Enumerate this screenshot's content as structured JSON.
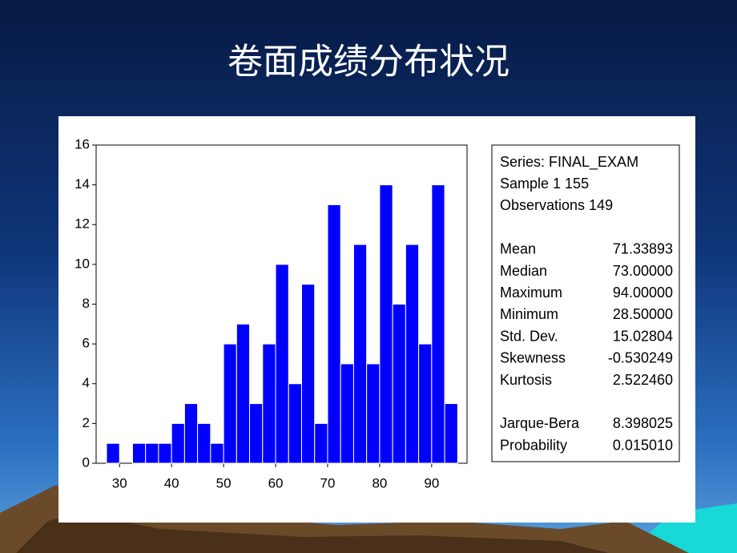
{
  "title": "卷面成绩分布状况",
  "chart_data": {
    "type": "histogram",
    "bins": [
      27.5,
      30,
      32.5,
      35,
      37.5,
      40,
      42.5,
      45,
      47.5,
      50,
      52.5,
      55,
      57.5,
      60,
      62.5,
      65,
      67.5,
      70,
      72.5,
      75,
      77.5,
      80,
      82.5,
      85,
      87.5,
      90,
      92.5,
      95
    ],
    "values": [
      1,
      0,
      1,
      1,
      1,
      2,
      3,
      2,
      1,
      6,
      7,
      3,
      6,
      10,
      4,
      9,
      2,
      13,
      5,
      11,
      5,
      14,
      8,
      11,
      6,
      14,
      3
    ],
    "color": "#0000ff",
    "xlim": [
      25.5,
      96.8
    ],
    "xticks": [
      30,
      40,
      50,
      60,
      70,
      80,
      90
    ],
    "ylim": [
      0,
      16
    ],
    "yticks": [
      0,
      2,
      4,
      6,
      8,
      10,
      12,
      14,
      16
    ]
  },
  "stats_box": {
    "lines": [
      "Series: FINAL_EXAM",
      "Sample 1 155",
      "Observations 149"
    ],
    "descriptive": [
      [
        "Mean",
        "71.33893"
      ],
      [
        "Median",
        "73.00000"
      ],
      [
        "Maximum",
        "94.00000"
      ],
      [
        "Minimum",
        "28.50000"
      ],
      [
        "Std. Dev.",
        "15.02804"
      ],
      [
        "Skewness",
        "-0.530249"
      ],
      [
        "Kurtosis",
        "2.522460"
      ]
    ],
    "tests": [
      [
        "Jarque-Bera",
        "8.398025"
      ],
      [
        "Probability",
        "0.015010"
      ]
    ]
  }
}
